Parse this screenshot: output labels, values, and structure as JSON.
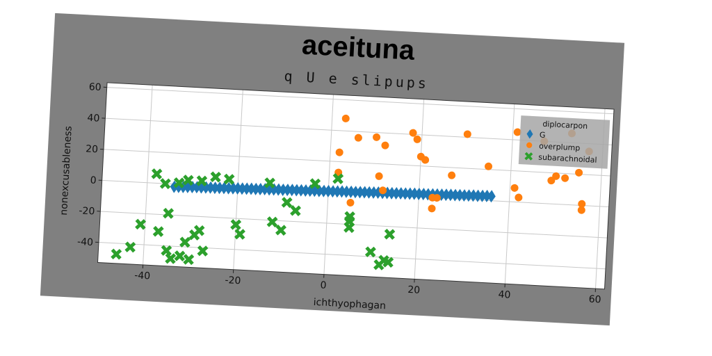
{
  "chart_data": {
    "type": "scatter",
    "title": "aceituna",
    "subtitle": "q U e slipups",
    "xlabel": "ichthyophagan",
    "ylabel": "nonexcusableness",
    "xlim": [
      -50,
      62
    ],
    "ylim": [
      -53,
      63
    ],
    "xticks": [
      -40,
      -20,
      0,
      20,
      40,
      60
    ],
    "yticks": [
      -40,
      -20,
      0,
      20,
      40,
      60
    ],
    "grid": true,
    "legend_position": "top-right",
    "legend_title": "diplocarpon",
    "colors": {
      "frame": "#808080",
      "plot_bg": "#ffffff",
      "grid": "#c8c8c8",
      "legend_bg": "#a6a6a6"
    },
    "series": [
      {
        "name": "G",
        "marker": "diamond",
        "color": "#1f77b4",
        "x": [
          -34,
          -33,
          -32,
          -31,
          -30,
          -29,
          -28,
          -27,
          -26,
          -25,
          -24,
          -23,
          -22,
          -21,
          -20,
          -19,
          -18,
          -17,
          -16,
          -15,
          -14,
          -13,
          -12,
          -11,
          -10,
          -9,
          -8,
          -7,
          -6,
          -5,
          -4,
          -3,
          -2,
          -1,
          0,
          1,
          2,
          3,
          4,
          5,
          6,
          7,
          8,
          9,
          10,
          11,
          12,
          13,
          14,
          15,
          16,
          17,
          18,
          19,
          20,
          21,
          22,
          23,
          24,
          25,
          26,
          27,
          28,
          29,
          30,
          31,
          32,
          33,
          34,
          35,
          36
        ],
        "y": [
          -1.7,
          -1.6,
          -1.5,
          -1.4,
          -1.3,
          -1.2,
          -1.2,
          -1.1,
          -1.0,
          -1.0,
          -0.9,
          -0.8,
          -0.8,
          -0.7,
          -0.6,
          -0.6,
          -0.5,
          -0.4,
          -0.4,
          -0.3,
          -0.2,
          -0.2,
          -0.1,
          0.0,
          0.0,
          0.1,
          0.2,
          0.2,
          0.3,
          0.3,
          0.4,
          0.5,
          0.5,
          0.6,
          0.7,
          0.7,
          0.8,
          0.9,
          0.9,
          1.0,
          1.0,
          1.1,
          1.2,
          1.2,
          1.3,
          1.4,
          1.4,
          1.5,
          1.5,
          1.6,
          1.7,
          1.7,
          1.8,
          1.9,
          1.9,
          2.0,
          2.0,
          2.1,
          2.2,
          2.2,
          2.3,
          2.4,
          2.4,
          2.5,
          2.5,
          2.6,
          2.7,
          2.7,
          2.8,
          2.9,
          2.9
        ]
      },
      {
        "name": "overplump",
        "marker": "circle",
        "color": "#ff7f0e",
        "x": [
          3,
          2,
          6,
          12,
          10,
          18,
          19,
          20,
          21,
          30,
          2,
          11,
          5,
          12,
          27,
          23,
          24,
          23,
          35,
          41,
          41,
          42,
          47,
          49,
          50,
          52,
          53,
          55,
          56,
          56,
          57
        ],
        "y": [
          48,
          26,
          36,
          32,
          37,
          41,
          37,
          26,
          24,
          42,
          13,
          12,
          -6,
          3,
          15,
          0,
          0,
          -7,
          22,
          45,
          9,
          3,
          40,
          15,
          18,
          17,
          46,
          21,
          1,
          -3,
          35
        ]
      },
      {
        "name": "subarachnoidal",
        "marker": "x",
        "color": "#2ca02c",
        "x": [
          -38,
          -36,
          -33,
          -31,
          -28,
          -25,
          -22,
          -13,
          -9,
          -7,
          -3,
          -12,
          -10,
          -20,
          -19,
          -43,
          -46,
          -41,
          -35,
          -37,
          -35,
          -32,
          -31,
          -29,
          -28,
          -27,
          -34,
          -30,
          2,
          5,
          5,
          5,
          10,
          12,
          13,
          14,
          14
        ],
        "y": [
          6,
          0,
          1,
          3,
          3,
          6,
          5,
          4,
          -8,
          -13,
          5,
          -21,
          -26,
          -24,
          -30,
          -42,
          -47,
          -27,
          -19,
          -31,
          -43,
          -46,
          -37,
          -32,
          -29,
          -42,
          -48,
          -48,
          9,
          -22,
          -18,
          -15,
          -37,
          -45,
          -42,
          -43,
          -25
        ]
      }
    ]
  }
}
